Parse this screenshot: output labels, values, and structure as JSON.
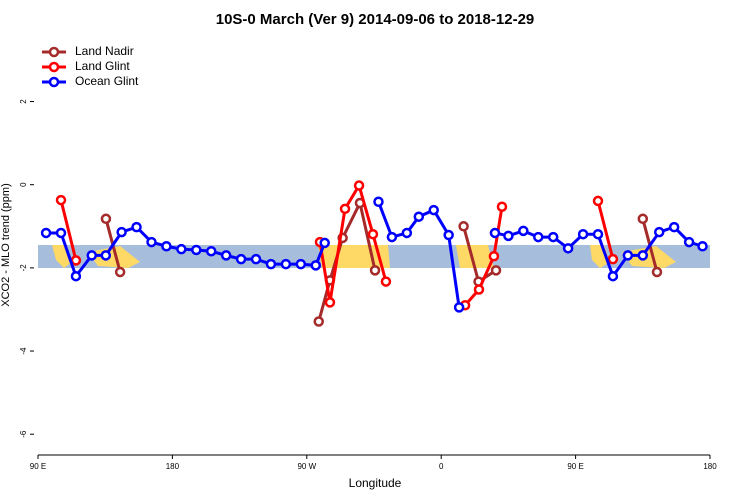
{
  "chart_data": {
    "type": "line",
    "title": "10S-0 March (Ver 9)   2014-09-06 to 2018-12-29",
    "x_label": "Longitude",
    "y_label": "XCO2 - MLO trend (ppm)",
    "xlim": [
      90,
      540
    ],
    "xticks": [
      {
        "value": 90,
        "label": "90 E"
      },
      {
        "value": 180,
        "label": "180"
      },
      {
        "value": 270,
        "label": "90 W"
      },
      {
        "value": 360,
        "label": "0"
      },
      {
        "value": 450,
        "label": "90 E"
      },
      {
        "value": 540,
        "label": "180"
      }
    ],
    "ylim": [
      -6.5,
      3.6
    ],
    "yticks": [
      -6,
      -4,
      -2,
      0,
      2
    ],
    "legend": "top-left",
    "series": [
      {
        "name": "Land Nadir",
        "color": "#a52a2a",
        "x": [
          135.5,
          145,
          null,
          278,
          285.5,
          294,
          305.6,
          315.7,
          null,
          375,
          385,
          396.7,
          null,
          495,
          504.5
        ],
        "values": [
          -0.82,
          -2.1,
          null,
          -3.29,
          -2.3,
          -1.28,
          -0.44,
          -2.06,
          null,
          -1.0,
          -2.33,
          -2.06,
          null,
          -0.82,
          -2.1
        ]
      },
      {
        "name": "Land Glint",
        "color": "#ff0000",
        "x": [
          105.4,
          115.4,
          null,
          278.8,
          285.5,
          295.6,
          305,
          314.3,
          323,
          null,
          376,
          385.3,
          395.3,
          400.7,
          null,
          465,
          475
        ],
        "values": [
          -0.37,
          -1.82,
          null,
          -1.38,
          -2.83,
          -0.58,
          -0.02,
          -1.19,
          -2.33,
          null,
          -2.9,
          -2.52,
          -1.72,
          -0.53,
          null,
          -0.39,
          -1.79
        ]
      },
      {
        "name": "Ocean Glint",
        "color": "#0000ff",
        "x": [
          95.4,
          105.4,
          115.4,
          126,
          135.4,
          146,
          156,
          166,
          176,
          186,
          196,
          206,
          216,
          226,
          236,
          246,
          256,
          266,
          276,
          282,
          null,
          318,
          327,
          337,
          345,
          355,
          365,
          372,
          null,
          396,
          405,
          415,
          425,
          435,
          445,
          455,
          465,
          475,
          485,
          495,
          506,
          516,
          526,
          535
        ],
        "values": [
          -1.16,
          -1.16,
          -2.2,
          -1.7,
          -1.7,
          -1.14,
          -1.02,
          -1.38,
          -1.48,
          -1.55,
          -1.57,
          -1.6,
          -1.7,
          -1.79,
          -1.79,
          -1.91,
          -1.91,
          -1.91,
          -1.94,
          -1.4,
          null,
          -0.41,
          -1.26,
          -1.16,
          -0.77,
          -0.61,
          -1.21,
          -2.95,
          null,
          -1.16,
          -1.23,
          -1.11,
          -1.26,
          -1.26,
          -1.53,
          -1.19,
          -1.19,
          -2.2,
          -1.7,
          -1.7,
          -1.14,
          -1.02,
          -1.38,
          -1.48
        ]
      }
    ]
  }
}
